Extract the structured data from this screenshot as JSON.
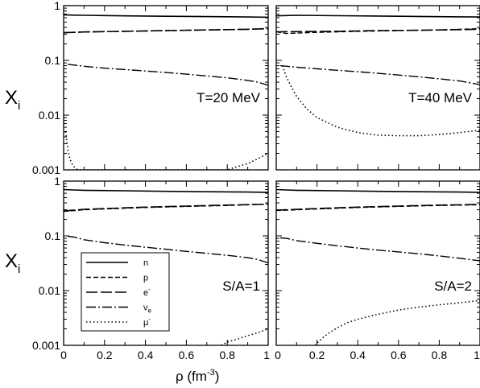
{
  "figure": {
    "y_axis_label": {
      "main": "X",
      "sub": "i"
    },
    "x_axis_label": {
      "main": "ρ (fm",
      "sup": "-3",
      "tail": ")"
    }
  },
  "chart_data": [
    {
      "type": "line",
      "panel_label": "T=20 MeV",
      "xlim": [
        0,
        1
      ],
      "ylim": [
        0.001,
        1
      ],
      "yscale": "log",
      "series": [
        {
          "name": "n",
          "x": [
            0,
            0.05,
            0.1,
            0.3,
            0.5,
            0.7,
            0.9,
            1.0
          ],
          "y": [
            0.68,
            0.67,
            0.665,
            0.65,
            0.64,
            0.63,
            0.62,
            0.615
          ]
        },
        {
          "name": "p",
          "x": [
            0,
            0.05,
            0.1,
            0.3,
            0.5,
            0.7,
            0.9,
            1.0
          ],
          "y": [
            0.32,
            0.325,
            0.33,
            0.34,
            0.35,
            0.36,
            0.37,
            0.38
          ]
        },
        {
          "name": "e",
          "x": [
            0,
            0.05,
            0.1,
            0.3,
            0.5,
            0.7,
            0.9,
            1.0
          ],
          "y": [
            0.32,
            0.325,
            0.33,
            0.34,
            0.35,
            0.36,
            0.37,
            0.38
          ]
        },
        {
          "name": "ν",
          "x": [
            0.02,
            0.1,
            0.2,
            0.3,
            0.4,
            0.5,
            0.6,
            0.7,
            0.8,
            0.9,
            0.95,
            1.0
          ],
          "y": [
            0.085,
            0.078,
            0.072,
            0.068,
            0.064,
            0.06,
            0.056,
            0.052,
            0.048,
            0.043,
            0.04,
            0.035
          ]
        },
        {
          "name": "μ",
          "x": [
            0.01,
            0.02,
            0.03,
            0.045,
            0.06,
            0.07,
            0.8,
            0.85,
            0.9,
            0.95,
            1.0
          ],
          "y": [
            0.005,
            0.0025,
            0.0016,
            0.0012,
            0.00105,
            0.001,
            0.001,
            0.00115,
            0.0013,
            0.0016,
            0.002
          ]
        }
      ]
    },
    {
      "type": "line",
      "panel_label": "T=40 MeV",
      "xlim": [
        0,
        1
      ],
      "ylim": [
        0.001,
        1
      ],
      "yscale": "log",
      "series": [
        {
          "name": "n",
          "x": [
            0,
            0.05,
            0.1,
            0.3,
            0.5,
            0.7,
            0.9,
            1.0
          ],
          "y": [
            0.65,
            0.66,
            0.665,
            0.655,
            0.645,
            0.635,
            0.625,
            0.62
          ]
        },
        {
          "name": "p",
          "x": [
            0,
            0.02,
            0.05,
            0.1,
            0.2,
            0.4,
            0.6,
            0.8,
            1.0
          ],
          "y": [
            0.34,
            0.32,
            0.31,
            0.315,
            0.325,
            0.34,
            0.35,
            0.36,
            0.38
          ]
        },
        {
          "name": "e",
          "x": [
            0,
            0.05,
            0.1,
            0.3,
            0.5,
            0.7,
            0.9,
            1.0
          ],
          "y": [
            0.33,
            0.335,
            0.335,
            0.34,
            0.35,
            0.355,
            0.365,
            0.37
          ]
        },
        {
          "name": "ν",
          "x": [
            0.02,
            0.1,
            0.2,
            0.3,
            0.4,
            0.5,
            0.6,
            0.7,
            0.8,
            0.9,
            0.95,
            1.0
          ],
          "y": [
            0.08,
            0.075,
            0.07,
            0.066,
            0.062,
            0.058,
            0.054,
            0.05,
            0.046,
            0.042,
            0.039,
            0.036
          ]
        },
        {
          "name": "μ",
          "x": [
            0.03,
            0.05,
            0.08,
            0.1,
            0.15,
            0.2,
            0.3,
            0.4,
            0.5,
            0.6,
            0.7,
            0.8,
            0.9,
            1.0
          ],
          "y": [
            0.08,
            0.05,
            0.03,
            0.022,
            0.013,
            0.009,
            0.006,
            0.0048,
            0.0043,
            0.0042,
            0.0042,
            0.0044,
            0.0048,
            0.0053
          ]
        }
      ]
    },
    {
      "type": "line",
      "panel_label": "S/A=1",
      "xlim": [
        0,
        1
      ],
      "ylim": [
        0.001,
        1
      ],
      "yscale": "log",
      "legend": {
        "position": "bottom-left",
        "entries": [
          {
            "label": "n",
            "sup": "",
            "sub": ""
          },
          {
            "label": "p",
            "sup": "",
            "sub": ""
          },
          {
            "label": "e",
            "sup": "-",
            "sub": ""
          },
          {
            "label": "ν",
            "sup": "",
            "sub": "e"
          },
          {
            "label": "μ",
            "sup": "-",
            "sub": ""
          }
        ]
      },
      "series": [
        {
          "name": "n",
          "x": [
            0,
            0.05,
            0.1,
            0.3,
            0.5,
            0.7,
            0.9,
            1.0
          ],
          "y": [
            0.7,
            0.69,
            0.68,
            0.665,
            0.65,
            0.64,
            0.63,
            0.625
          ]
        },
        {
          "name": "p",
          "x": [
            0,
            0.05,
            0.1,
            0.2,
            0.4,
            0.6,
            0.8,
            1.0
          ],
          "y": [
            0.28,
            0.29,
            0.3,
            0.31,
            0.33,
            0.345,
            0.36,
            0.38
          ]
        },
        {
          "name": "e",
          "x": [
            0,
            0.05,
            0.1,
            0.2,
            0.4,
            0.6,
            0.8,
            1.0
          ],
          "y": [
            0.285,
            0.295,
            0.305,
            0.315,
            0.335,
            0.35,
            0.365,
            0.38
          ]
        },
        {
          "name": "ν",
          "x": [
            0.02,
            0.05,
            0.1,
            0.2,
            0.3,
            0.4,
            0.5,
            0.6,
            0.7,
            0.8,
            0.9,
            0.95,
            1.0
          ],
          "y": [
            0.098,
            0.095,
            0.085,
            0.075,
            0.068,
            0.062,
            0.057,
            0.052,
            0.048,
            0.044,
            0.04,
            0.037,
            0.032
          ]
        },
        {
          "name": "μ",
          "x": [
            0.77,
            0.8,
            0.85,
            0.9,
            0.95,
            1.0
          ],
          "y": [
            0.001,
            0.00115,
            0.0013,
            0.0015,
            0.0017,
            0.002
          ]
        }
      ]
    },
    {
      "type": "line",
      "panel_label": "S/A=2",
      "xlim": [
        0,
        1
      ],
      "ylim": [
        0.001,
        1
      ],
      "yscale": "log",
      "series": [
        {
          "name": "n",
          "x": [
            0,
            0.05,
            0.1,
            0.3,
            0.5,
            0.7,
            0.9,
            1.0
          ],
          "y": [
            0.7,
            0.69,
            0.68,
            0.665,
            0.65,
            0.64,
            0.63,
            0.625
          ]
        },
        {
          "name": "p",
          "x": [
            0,
            0.05,
            0.1,
            0.2,
            0.4,
            0.6,
            0.8,
            1.0
          ],
          "y": [
            0.29,
            0.295,
            0.3,
            0.31,
            0.33,
            0.345,
            0.36,
            0.37
          ]
        },
        {
          "name": "e",
          "x": [
            0,
            0.05,
            0.1,
            0.2,
            0.4,
            0.6,
            0.8,
            1.0
          ],
          "y": [
            0.295,
            0.3,
            0.305,
            0.315,
            0.335,
            0.35,
            0.365,
            0.375
          ]
        },
        {
          "name": "ν",
          "x": [
            0.02,
            0.05,
            0.1,
            0.2,
            0.3,
            0.4,
            0.5,
            0.6,
            0.7,
            0.8,
            0.9,
            0.95,
            1.0
          ],
          "y": [
            0.092,
            0.09,
            0.082,
            0.073,
            0.066,
            0.06,
            0.055,
            0.051,
            0.047,
            0.043,
            0.039,
            0.037,
            0.035
          ]
        },
        {
          "name": "μ",
          "x": [
            0.19,
            0.2,
            0.22,
            0.25,
            0.3,
            0.35,
            0.4,
            0.5,
            0.6,
            0.7,
            0.8,
            0.9,
            1.0
          ],
          "y": [
            0.001,
            0.0011,
            0.0013,
            0.0016,
            0.0021,
            0.0026,
            0.003,
            0.0037,
            0.0044,
            0.005,
            0.0055,
            0.006,
            0.0066
          ]
        }
      ]
    }
  ]
}
